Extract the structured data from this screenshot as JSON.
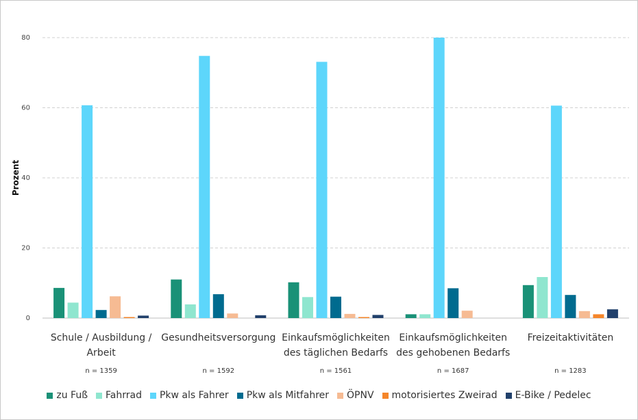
{
  "chart_data": {
    "type": "bar",
    "ylabel": "Prozent",
    "xlabel": "",
    "ylim": [
      0,
      80
    ],
    "yticks": [
      0,
      20,
      40,
      60,
      80
    ],
    "grid": true,
    "legend_position": "bottom",
    "categories": [
      [
        "Schule / Ausbildung /",
        "Arbeit"
      ],
      [
        "Gesundheitsversorgung"
      ],
      [
        "Einkaufsmöglichkeiten",
        "des täglichen Bedarfs"
      ],
      [
        "Einkaufsmöglichkeiten",
        "des gehobenen Bedarfs"
      ],
      [
        "Freizeitaktivitäten"
      ]
    ],
    "sample_sizes": [
      "n = 1359",
      "n = 1592",
      "n = 1561",
      "n = 1687",
      "n = 1283"
    ],
    "series": [
      {
        "name": "zu Fuß",
        "color": "#1a9177",
        "values": [
          8.6,
          11.0,
          10.2,
          1.1,
          9.4
        ]
      },
      {
        "name": "Fahrrad",
        "color": "#8fe6cf",
        "values": [
          4.4,
          3.9,
          6.0,
          1.1,
          11.7
        ]
      },
      {
        "name": "Pkw als Fahrer",
        "color": "#5dd6fb",
        "values": [
          60.7,
          74.8,
          73.1,
          80.0,
          60.6
        ]
      },
      {
        "name": "Pkw als Mitfahrer",
        "color": "#006b8f",
        "values": [
          2.3,
          6.8,
          6.1,
          8.5,
          6.6
        ]
      },
      {
        "name": "ÖPNV",
        "color": "#f6bb93",
        "values": [
          6.2,
          1.3,
          1.2,
          2.1,
          2.0
        ]
      },
      {
        "name": "motorisiertes Zweirad",
        "color": "#f5862a",
        "values": [
          0.3,
          0.0,
          0.3,
          0.0,
          1.1
        ]
      },
      {
        "name": "E-Bike / Pedelec",
        "color": "#21406b",
        "values": [
          0.7,
          0.8,
          0.9,
          0.0,
          2.5
        ]
      }
    ]
  }
}
